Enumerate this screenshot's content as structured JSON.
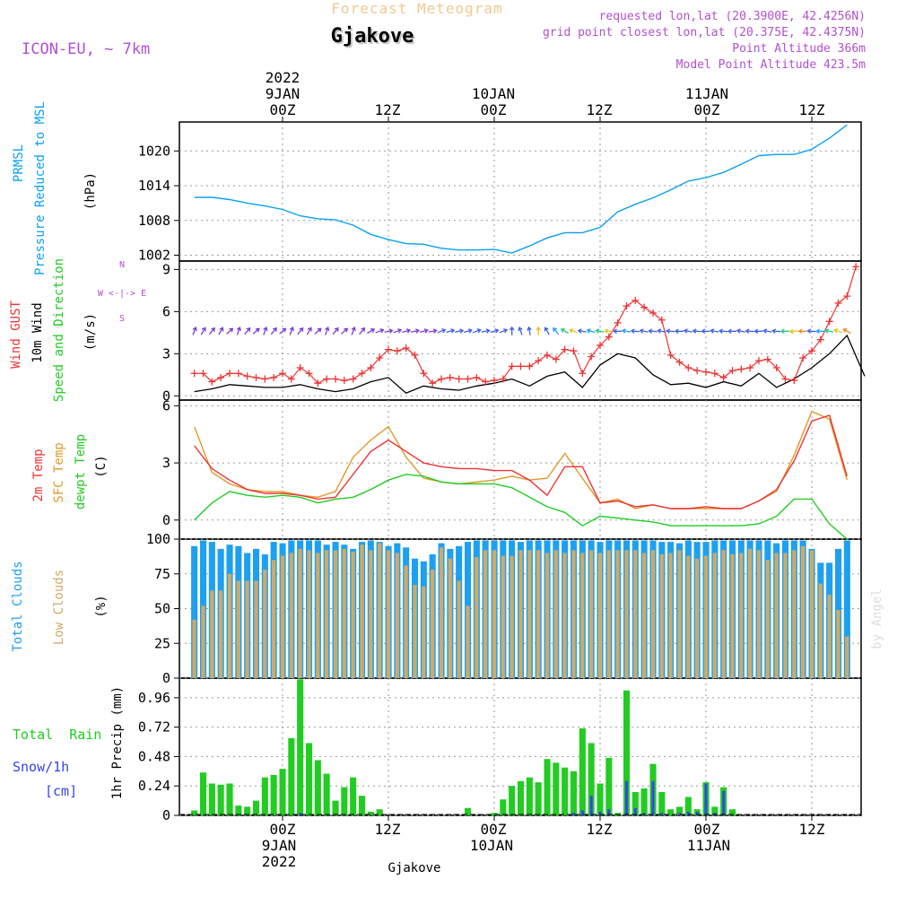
{
  "header": {
    "title": "Forecast Meteogram",
    "location": "Gjakove",
    "model": "ICON-EU, ~ 7km",
    "requested": "requested lon,lat (20.3900E, 42.4256N)",
    "gridpoint": "grid point closest lon,lat (20.375E, 42.4375N)",
    "point_alt": "Point Altitude 366m",
    "model_alt": "Model Point Altitude 423.5m"
  },
  "top_axis": {
    "year": "2022",
    "dates": [
      "9JAN",
      "10JAN",
      "11JAN"
    ],
    "hours": [
      "00Z",
      "12Z",
      "00Z",
      "12Z",
      "00Z",
      "12Z"
    ]
  },
  "bottom_axis": {
    "year": "2022",
    "dates": [
      "9JAN",
      "10JAN",
      "11JAN"
    ],
    "hours": [
      "00Z",
      "12Z",
      "00Z",
      "12Z",
      "00Z",
      "12Z"
    ],
    "footer": "Gjakove"
  },
  "watermark": "by Angel",
  "colors": {
    "pressure": "#0aa0f0",
    "gust": "#ee3333",
    "wind": "#000000",
    "t2m": "#ee3333",
    "sfc": "#e09a2a",
    "dewpt": "#22cc22",
    "total_clouds": "#1ea0f0",
    "low_clouds": "#d0aa66",
    "rain": "#22cc22",
    "snow": "#3344ee",
    "accent": "#b050d0",
    "title": "#f0c890"
  },
  "chart_data": [
    {
      "type": "line",
      "name": "pressure",
      "ylabel_lines": [
        "PRMSL",
        "Pressure Reduced to MSL",
        "(hPa)"
      ],
      "y_ticks": [
        "1002",
        "1008",
        "1014",
        "1020"
      ],
      "ylim": [
        1001,
        1025
      ],
      "x_hours": [
        -10,
        -8,
        -6,
        -4,
        -2,
        0,
        2,
        4,
        6,
        8,
        10,
        12,
        14,
        16,
        18,
        20,
        22,
        24,
        26,
        28,
        30,
        32,
        34,
        36,
        38,
        40,
        42,
        44,
        46,
        48,
        50,
        52,
        54,
        56,
        58,
        60,
        62,
        64
      ],
      "values": [
        1012.0,
        1012.0,
        1011.6,
        1011.0,
        1010.5,
        1009.9,
        1008.8,
        1008.3,
        1008.1,
        1007.2,
        1005.6,
        1004.7,
        1004.0,
        1003.9,
        1003.2,
        1002.9,
        1002.9,
        1003.0,
        1002.4,
        1003.6,
        1005.0,
        1005.9,
        1005.9,
        1006.8,
        1009.5,
        1010.8,
        1011.9,
        1013.3,
        1014.8,
        1015.4,
        1016.3,
        1017.7,
        1019.2,
        1019.4,
        1019.4,
        1020.3,
        1022.2,
        1024.5
      ]
    },
    {
      "type": "line",
      "name": "wind",
      "ylabel_lines": [
        "Wind GUST",
        "10m Wind",
        "Speed and Direction",
        "(m/s)"
      ],
      "compass": [
        "N",
        "W <-|-> E",
        "S"
      ],
      "y_ticks": [
        "0",
        "3",
        "6",
        "9"
      ],
      "ylim": [
        -0.3,
        9.6
      ],
      "gust_x": [
        -10,
        -9,
        -8,
        -7,
        -6,
        -5,
        -4,
        -3,
        -2,
        -1,
        0,
        1,
        2,
        3,
        4,
        5,
        6,
        7,
        8,
        9,
        10,
        11,
        12,
        13,
        14,
        15,
        16,
        17,
        18,
        19,
        20,
        21,
        22,
        23,
        24,
        25,
        26,
        27,
        28,
        29,
        30,
        31,
        32,
        33,
        34,
        35,
        36,
        37,
        38,
        39,
        40,
        41,
        42,
        43,
        44,
        45,
        46,
        47,
        48,
        49,
        50,
        51,
        52,
        53,
        54,
        55,
        56,
        57,
        58,
        59,
        60,
        61,
        62,
        63,
        64,
        65
      ],
      "gust": [
        1.6,
        1.6,
        1.0,
        1.3,
        1.6,
        1.6,
        1.4,
        1.3,
        1.2,
        1.3,
        1.6,
        1.2,
        2.0,
        1.6,
        0.9,
        1.2,
        1.2,
        1.1,
        1.2,
        1.6,
        2.0,
        2.7,
        3.3,
        3.2,
        3.4,
        2.9,
        1.6,
        0.9,
        1.2,
        1.3,
        1.2,
        1.2,
        1.3,
        1.0,
        1.1,
        1.2,
        2.1,
        2.1,
        2.1,
        2.5,
        2.9,
        2.6,
        3.3,
        3.2,
        1.6,
        2.8,
        3.6,
        4.2,
        5.2,
        6.4,
        6.8,
        6.3,
        5.9,
        5.4,
        2.9,
        2.4,
        2.0,
        1.8,
        1.7,
        1.6,
        1.3,
        1.8,
        1.9,
        2.0,
        2.5,
        2.6,
        2.0,
        1.2,
        1.1,
        2.7,
        3.2,
        4.0,
        5.3,
        6.6,
        7.1,
        9.2
      ],
      "wind_x": [
        -10,
        -8,
        -6,
        -4,
        -2,
        0,
        2,
        4,
        6,
        8,
        10,
        12,
        14,
        16,
        18,
        20,
        22,
        24,
        26,
        28,
        30,
        32,
        34,
        36,
        38,
        40,
        42,
        44,
        46,
        48,
        50,
        52,
        54,
        56,
        58,
        60,
        62,
        64,
        66
      ],
      "wind": [
        0.3,
        0.5,
        0.8,
        0.7,
        0.6,
        0.6,
        0.8,
        0.5,
        0.3,
        0.5,
        1.0,
        1.3,
        0.2,
        0.7,
        0.5,
        0.4,
        0.7,
        0.9,
        1.2,
        0.7,
        1.4,
        1.7,
        0.6,
        2.2,
        3.0,
        2.7,
        1.5,
        0.8,
        0.9,
        0.6,
        1.0,
        0.7,
        1.6,
        0.6,
        1.2,
        2.0,
        3.0,
        4.3,
        1.4
      ],
      "arrow_x": [
        -10,
        -9,
        -8,
        -7,
        -6,
        -5,
        -4,
        -3,
        -2,
        -1,
        0,
        1,
        2,
        3,
        4,
        5,
        6,
        7,
        8,
        9,
        10,
        11,
        12,
        13,
        14,
        15,
        16,
        17,
        18,
        19,
        20,
        21,
        22,
        23,
        24,
        25,
        26,
        27,
        28,
        29,
        30,
        31,
        32,
        33,
        34,
        35,
        36,
        37,
        38,
        39,
        40,
        41,
        42,
        43,
        44,
        45,
        46,
        47,
        48,
        49,
        50,
        51,
        52,
        53,
        54,
        55,
        56,
        57,
        58,
        59,
        60,
        61,
        62,
        63,
        64
      ],
      "arrow_dir_deg": [
        200,
        210,
        220,
        210,
        230,
        200,
        220,
        230,
        200,
        220,
        230,
        200,
        220,
        210,
        230,
        200,
        220,
        230,
        200,
        220,
        240,
        250,
        260,
        250,
        255,
        260,
        255,
        260,
        250,
        255,
        260,
        255,
        250,
        260,
        255,
        250,
        180,
        160,
        170,
        180,
        150,
        140,
        120,
        110,
        100,
        105,
        100,
        95,
        90,
        100,
        95,
        100,
        95,
        100,
        95,
        90,
        100,
        95,
        90,
        100,
        95,
        90,
        100,
        95,
        90,
        100,
        95,
        90,
        85,
        90,
        95,
        90,
        100,
        110,
        120
      ]
    },
    {
      "type": "line",
      "name": "temperature",
      "ylabel_lines": [
        "2m Temp",
        "SFC Temp",
        "dewpt Temp",
        "(C)"
      ],
      "y_ticks": [
        "0",
        "3",
        "6"
      ],
      "ylim": [
        -1.0,
        6.3
      ],
      "x_hours": [
        -10,
        -8,
        -6,
        -4,
        -2,
        0,
        2,
        4,
        6,
        8,
        10,
        12,
        14,
        16,
        18,
        20,
        22,
        24,
        26,
        28,
        30,
        32,
        34,
        36,
        38,
        40,
        42,
        44,
        46,
        48,
        50,
        52,
        54,
        56,
        58,
        60,
        62,
        64
      ],
      "t2m": [
        3.9,
        2.7,
        2.1,
        1.6,
        1.4,
        1.4,
        1.3,
        1.1,
        1.2,
        2.4,
        3.6,
        4.2,
        3.6,
        3.0,
        2.8,
        2.7,
        2.7,
        2.6,
        2.6,
        2.1,
        1.3,
        2.8,
        2.8,
        0.9,
        1.0,
        0.7,
        0.8,
        0.6,
        0.6,
        0.7,
        0.6,
        0.6,
        1.0,
        1.6,
        3.1,
        5.2,
        5.5,
        2.3
      ],
      "sfc": [
        4.9,
        2.5,
        1.9,
        1.6,
        1.5,
        1.5,
        1.3,
        1.2,
        1.5,
        3.3,
        4.2,
        4.9,
        3.3,
        2.2,
        2.0,
        1.9,
        2.0,
        2.1,
        2.3,
        2.1,
        2.2,
        3.5,
        2.2,
        0.9,
        1.1,
        0.6,
        0.8,
        0.6,
        0.6,
        0.6,
        0.6,
        0.6,
        1.0,
        1.5,
        3.4,
        5.7,
        5.3,
        2.1
      ],
      "dewpt": [
        0.0,
        0.9,
        1.5,
        1.3,
        1.2,
        1.3,
        1.2,
        0.9,
        1.1,
        1.2,
        1.6,
        2.1,
        2.4,
        2.3,
        2.0,
        1.9,
        1.9,
        1.9,
        1.7,
        1.2,
        0.7,
        0.4,
        -0.3,
        0.2,
        0.1,
        0.0,
        -0.1,
        -0.3,
        -0.3,
        -0.3,
        -0.3,
        -0.3,
        -0.2,
        0.2,
        1.1,
        1.1,
        -0.2,
        -1.0
      ]
    },
    {
      "type": "bar",
      "name": "clouds",
      "ylabel_lines": [
        "Total Clouds",
        "Low Clouds",
        "(%)"
      ],
      "y_ticks": [
        "0",
        "25",
        "50",
        "75",
        "100"
      ],
      "ylim": [
        0,
        100
      ],
      "x_hours": [
        -10,
        -9,
        -8,
        -7,
        -6,
        -5,
        -4,
        -3,
        -2,
        -1,
        0,
        1,
        2,
        3,
        4,
        5,
        6,
        7,
        8,
        9,
        10,
        11,
        12,
        13,
        14,
        15,
        16,
        17,
        18,
        19,
        20,
        21,
        22,
        23,
        24,
        25,
        26,
        27,
        28,
        29,
        30,
        31,
        32,
        33,
        34,
        35,
        36,
        37,
        38,
        39,
        40,
        41,
        42,
        43,
        44,
        45,
        46,
        47,
        48,
        49,
        50,
        51,
        52,
        53,
        54,
        55,
        56,
        57,
        58,
        59,
        60,
        61,
        62,
        63,
        64
      ],
      "total": [
        95,
        99,
        98,
        93,
        96,
        95,
        90,
        93,
        89,
        98,
        97,
        99,
        99,
        99,
        99,
        96,
        98,
        96,
        93,
        98,
        99,
        98,
        95,
        97,
        94,
        86,
        84,
        89,
        97,
        93,
        95,
        98,
        99,
        99,
        99,
        99,
        99,
        98,
        99,
        99,
        99,
        99,
        99,
        99,
        99,
        99,
        98,
        99,
        99,
        99,
        99,
        99,
        99,
        98,
        98,
        97,
        99,
        98,
        98,
        99,
        99,
        99,
        99,
        99,
        99,
        99,
        97,
        99,
        99,
        99,
        93,
        83,
        83,
        93,
        99
      ],
      "low": [
        42,
        52,
        63,
        63,
        75,
        70,
        70,
        70,
        78,
        85,
        88,
        90,
        93,
        92,
        90,
        92,
        92,
        93,
        91,
        96,
        92,
        97,
        92,
        90,
        81,
        67,
        66,
        78,
        94,
        86,
        70,
        52,
        87,
        92,
        92,
        88,
        88,
        92,
        92,
        92,
        90,
        92,
        90,
        92,
        90,
        92,
        90,
        92,
        92,
        92,
        92,
        90,
        92,
        89,
        90,
        92,
        88,
        86,
        88,
        90,
        92,
        89,
        90,
        93,
        92,
        85,
        90,
        90,
        92,
        95,
        92,
        68,
        60,
        49,
        30
      ]
    },
    {
      "type": "bar",
      "name": "precip",
      "ylabel_lines": [
        "Total  Rain",
        "Snow/1h",
        "[cm]",
        "1hr Precip (mm)"
      ],
      "y_ticks": [
        "0",
        "0.24",
        "0.48",
        "0.72",
        "0.96"
      ],
      "ylim": [
        0,
        1.12
      ],
      "x_hours": [
        -10,
        -9,
        -8,
        -7,
        -6,
        -5,
        -4,
        -3,
        -2,
        -1,
        0,
        1,
        2,
        3,
        4,
        5,
        6,
        7,
        8,
        9,
        10,
        11,
        12,
        13,
        14,
        15,
        16,
        17,
        18,
        19,
        20,
        21,
        22,
        23,
        24,
        25,
        26,
        27,
        28,
        29,
        30,
        31,
        32,
        33,
        34,
        35,
        36,
        37,
        38,
        39,
        40,
        41,
        42,
        43,
        44,
        45,
        46,
        47,
        48,
        49,
        50,
        51,
        52,
        53,
        54,
        55,
        56,
        57,
        58,
        59,
        60,
        61,
        62,
        63,
        64
      ],
      "rain": [
        0.04,
        0.35,
        0.26,
        0.25,
        0.26,
        0.08,
        0.07,
        0.12,
        0.31,
        0.33,
        0.38,
        0.63,
        1.11,
        0.59,
        0.45,
        0.34,
        0.12,
        0.23,
        0.31,
        0.16,
        0.03,
        0.05,
        0,
        0,
        0,
        0,
        0,
        0,
        0,
        0,
        0,
        0.06,
        0,
        0,
        0.02,
        0.13,
        0.24,
        0.28,
        0.31,
        0.27,
        0.46,
        0.43,
        0.39,
        0.36,
        0.71,
        0.59,
        0.26,
        0.47,
        0.02,
        1.02,
        0.19,
        0.22,
        0.42,
        0.19,
        0.05,
        0.07,
        0.15,
        0.05,
        0.27,
        0.07,
        0.23,
        0.05,
        0,
        0,
        0,
        0,
        0,
        0,
        0,
        0,
        0,
        0,
        0,
        0,
        0
      ],
      "snow": [
        0,
        0,
        0,
        0,
        0,
        0,
        0,
        0,
        0,
        0,
        0,
        0,
        0.02,
        0,
        0,
        0,
        0,
        0,
        0,
        0,
        0,
        0,
        0,
        0,
        0,
        0,
        0,
        0,
        0,
        0,
        0,
        0,
        0,
        0,
        0,
        0,
        0,
        0,
        0,
        0,
        0,
        0,
        0,
        0.02,
        0.04,
        0.16,
        0.03,
        0.05,
        0,
        0.28,
        0.06,
        0.02,
        0.28,
        0.02,
        0,
        0.02,
        0.03,
        0.03,
        0.26,
        0.02,
        0.2,
        0,
        0,
        0,
        0,
        0,
        0,
        0,
        0,
        0,
        0,
        0,
        0,
        0,
        0
      ]
    }
  ]
}
